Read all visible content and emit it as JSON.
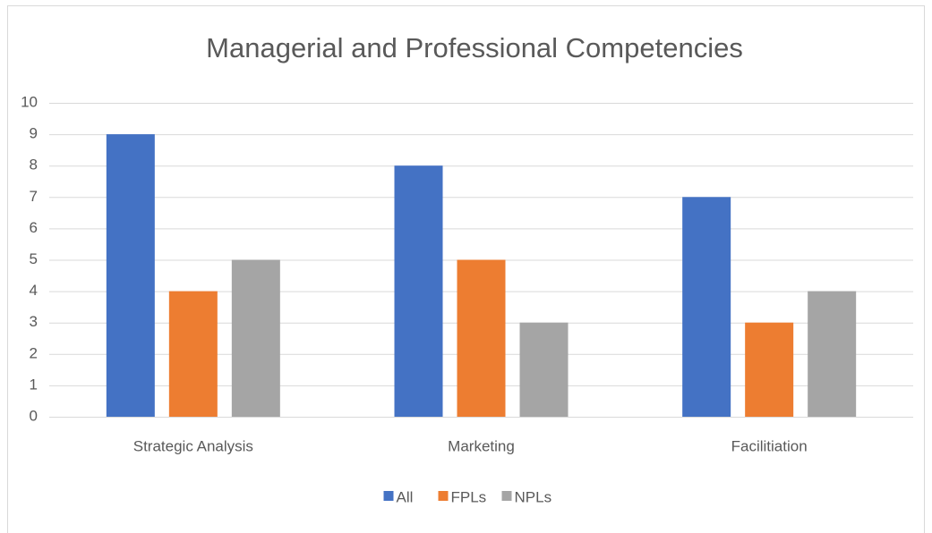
{
  "chart_data": {
    "type": "bar",
    "title": "Managerial and Professional Competencies",
    "categories": [
      "Strategic Analysis",
      "Marketing",
      "Facilitiation"
    ],
    "series": [
      {
        "name": "All",
        "color": "#4472c4",
        "values": [
          9,
          8,
          7
        ]
      },
      {
        "name": "FPLs",
        "color": "#ed7d31",
        "values": [
          4,
          5,
          3
        ]
      },
      {
        "name": "NPLs",
        "color": "#a5a5a5",
        "values": [
          5,
          3,
          4
        ]
      }
    ],
    "ylim": [
      0,
      10
    ],
    "yticks": [
      0,
      1,
      2,
      3,
      4,
      5,
      6,
      7,
      8,
      9,
      10
    ],
    "grid": true,
    "legend": "bottom"
  }
}
